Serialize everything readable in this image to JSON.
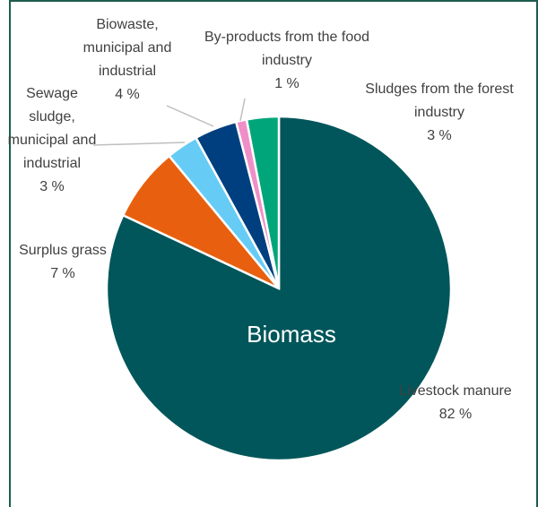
{
  "chart_data": {
    "type": "pie",
    "annotations": [
      "Biomass"
    ],
    "categories": [
      "Livestock manure",
      "Surplus grass",
      "Sewage sludge, municipal and industrial",
      "Biowaste, municipal and industrial",
      "By-products from the food industry",
      "Sludges from the forest industry"
    ],
    "values": [
      82,
      7,
      3,
      4,
      1,
      3
    ],
    "value_labels": [
      "82 %",
      "7 %",
      "3 %",
      "4 %",
      "1 %",
      "3 %"
    ],
    "colors": [
      "#00565a",
      "#e8600f",
      "#66ccf5",
      "#003f7f",
      "#ef8fc7",
      "#00a67a"
    ]
  }
}
